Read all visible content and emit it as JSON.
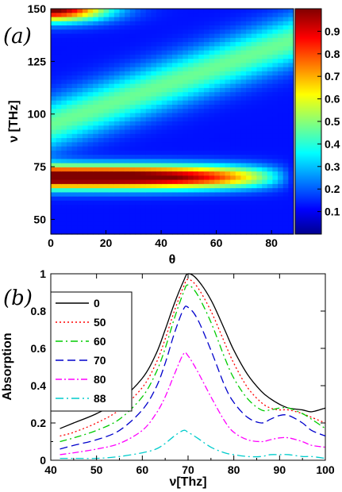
{
  "chart_data": [
    {
      "type": "heatmap",
      "panel_label": "(a)",
      "xlabel": "θ",
      "ylabel": "ν [THz]",
      "xlim": [
        0,
        88
      ],
      "ylim": [
        43,
        150
      ],
      "xticks": [
        "0",
        "20",
        "40",
        "60",
        "80"
      ],
      "yticks": [
        "50",
        "75",
        "100",
        "125",
        "150"
      ],
      "colorbar": {
        "range": [
          0,
          1
        ],
        "ticks": [
          "0.1",
          "0.2",
          "0.3",
          "0.4",
          "0.5",
          "0.6",
          "0.7",
          "0.8",
          "0.9"
        ],
        "colormap": "jet"
      }
    },
    {
      "type": "line",
      "panel_label": "(b)",
      "xlabel": "ν[Thz]",
      "ylabel": "Absorption",
      "xlim": [
        40,
        100
      ],
      "ylim": [
        0,
        1
      ],
      "xticks": [
        "40",
        "50",
        "60",
        "70",
        "80",
        "90",
        "100"
      ],
      "yticks": [
        "0",
        "0.2",
        "0.4",
        "0.6",
        "0.8",
        "1"
      ],
      "legend_position": "top-left",
      "series": [
        {
          "name": "0",
          "color": "#000000",
          "dash": "",
          "x": [
            42,
            45,
            50,
            55,
            60,
            63,
            65,
            67,
            69,
            70,
            72,
            75,
            78,
            80,
            83,
            86,
            88,
            90,
            92,
            95,
            97,
            100
          ],
          "y": [
            0.17,
            0.2,
            0.25,
            0.32,
            0.44,
            0.57,
            0.7,
            0.84,
            0.96,
            1.0,
            0.97,
            0.86,
            0.7,
            0.59,
            0.46,
            0.37,
            0.33,
            0.3,
            0.28,
            0.27,
            0.26,
            0.28
          ]
        },
        {
          "name": "50",
          "color": "#ff0000",
          "dash": "2,3",
          "x": [
            42,
            45,
            50,
            55,
            60,
            63,
            65,
            67,
            69,
            70,
            72,
            75,
            78,
            80,
            83,
            86,
            88,
            90,
            92,
            95,
            97,
            100
          ],
          "y": [
            0.13,
            0.15,
            0.2,
            0.27,
            0.39,
            0.52,
            0.65,
            0.8,
            0.93,
            0.97,
            0.93,
            0.8,
            0.63,
            0.52,
            0.39,
            0.31,
            0.28,
            0.27,
            0.27,
            0.25,
            0.23,
            0.2
          ]
        },
        {
          "name": "60",
          "color": "#00cc00",
          "dash": "9,4,2,4",
          "x": [
            42,
            45,
            50,
            55,
            60,
            63,
            65,
            67,
            69,
            70,
            72,
            75,
            78,
            80,
            83,
            86,
            88,
            90,
            92,
            95,
            97,
            100
          ],
          "y": [
            0.1,
            0.12,
            0.16,
            0.22,
            0.34,
            0.47,
            0.6,
            0.76,
            0.9,
            0.94,
            0.89,
            0.74,
            0.55,
            0.44,
            0.33,
            0.27,
            0.27,
            0.28,
            0.28,
            0.25,
            0.22,
            0.17
          ]
        },
        {
          "name": "70",
          "color": "#0000cc",
          "dash": "10,5",
          "x": [
            42,
            45,
            50,
            55,
            60,
            63,
            65,
            67,
            69,
            70,
            72,
            75,
            78,
            80,
            83,
            86,
            88,
            90,
            92,
            95,
            97,
            100
          ],
          "y": [
            0.06,
            0.08,
            0.11,
            0.16,
            0.27,
            0.39,
            0.52,
            0.68,
            0.81,
            0.82,
            0.76,
            0.59,
            0.4,
            0.31,
            0.23,
            0.2,
            0.22,
            0.24,
            0.24,
            0.2,
            0.16,
            0.13
          ]
        },
        {
          "name": "80",
          "color": "#ff00ff",
          "dash": "8,3,2,3",
          "x": [
            42,
            45,
            50,
            55,
            60,
            63,
            65,
            67,
            69,
            70,
            72,
            75,
            78,
            80,
            83,
            86,
            88,
            90,
            92,
            95,
            97,
            100
          ],
          "y": [
            0.03,
            0.04,
            0.06,
            0.09,
            0.16,
            0.25,
            0.34,
            0.46,
            0.57,
            0.56,
            0.48,
            0.34,
            0.21,
            0.15,
            0.11,
            0.1,
            0.11,
            0.12,
            0.12,
            0.1,
            0.08,
            0.07
          ]
        },
        {
          "name": "88",
          "color": "#00cccc",
          "dash": "10,4,2,4",
          "x": [
            42,
            45,
            50,
            55,
            60,
            63,
            65,
            67,
            69,
            70,
            72,
            75,
            78,
            80,
            83,
            86,
            88,
            90,
            92,
            95,
            97,
            100
          ],
          "y": [
            0.01,
            0.01,
            0.01,
            0.02,
            0.04,
            0.06,
            0.09,
            0.13,
            0.16,
            0.15,
            0.12,
            0.07,
            0.04,
            0.03,
            0.02,
            0.02,
            0.03,
            0.03,
            0.03,
            0.02,
            0.02,
            0.01
          ]
        }
      ]
    }
  ]
}
